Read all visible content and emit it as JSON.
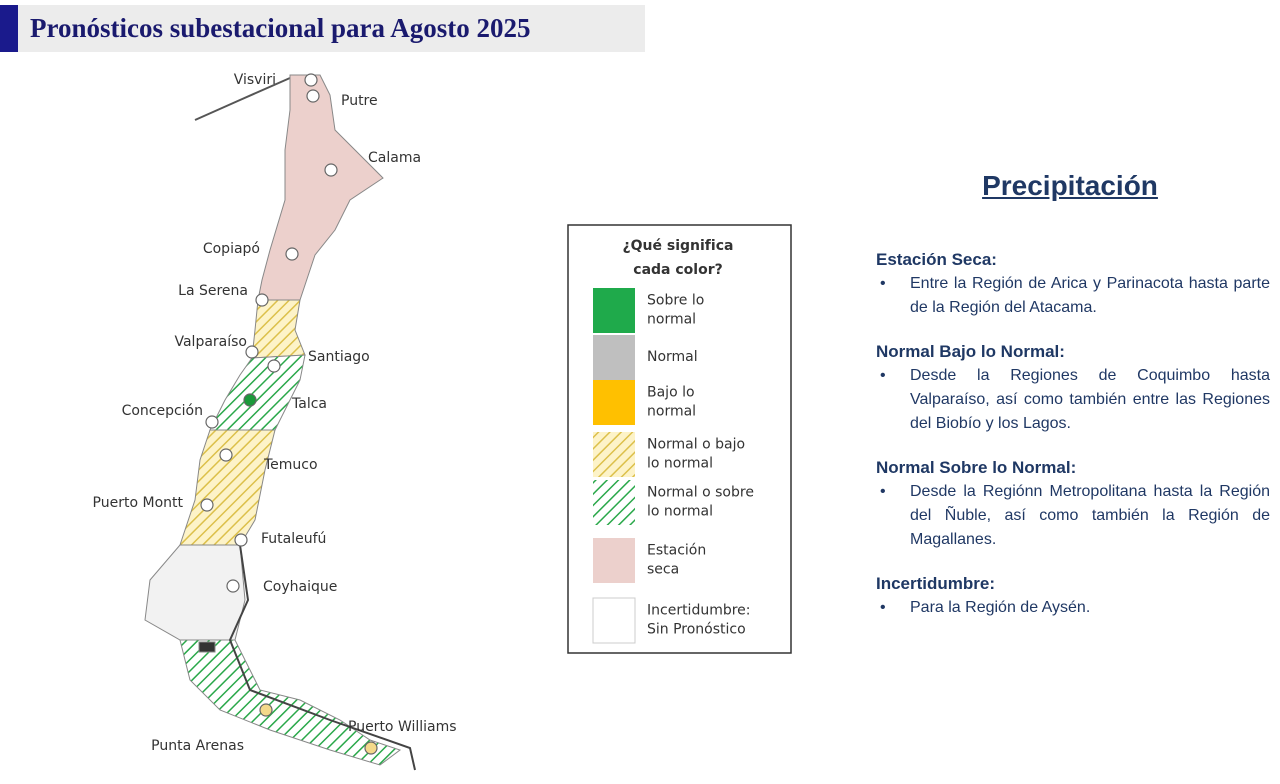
{
  "header": {
    "title": "Pronósticos subestacional para Agosto 2025"
  },
  "map": {
    "places": [
      {
        "label": "Visviri"
      },
      {
        "label": "Putre"
      },
      {
        "label": "Calama"
      },
      {
        "label": "Copiapó"
      },
      {
        "label": "La Serena"
      },
      {
        "label": "Valparaíso"
      },
      {
        "label": "Santiago"
      },
      {
        "label": "Talca"
      },
      {
        "label": "Concepción"
      },
      {
        "label": "Temuco"
      },
      {
        "label": "Puerto Montt"
      },
      {
        "label": "Futaleufú"
      },
      {
        "label": "Coyhaique"
      },
      {
        "label": "Punta Arenas"
      },
      {
        "label": "Puerto Williams"
      }
    ]
  },
  "legend": {
    "title_lines": [
      "¿Qué significa",
      "cada color?"
    ],
    "items": [
      {
        "lines": [
          "Sobre lo",
          "normal"
        ]
      },
      {
        "lines": [
          "Normal"
        ]
      },
      {
        "lines": [
          "Bajo lo",
          "normal"
        ]
      },
      {
        "lines": [
          "Normal o bajo",
          "lo normal"
        ]
      },
      {
        "lines": [
          "Normal o sobre",
          "lo normal"
        ]
      },
      {
        "lines": [
          "Estación",
          "seca"
        ]
      },
      {
        "lines": [
          "Incertidumbre:",
          "Sin Pronóstico"
        ]
      }
    ]
  },
  "text_panel": {
    "heading": "Precipitación",
    "sections": [
      {
        "heading": "Estación Seca:",
        "bullets": [
          "Entre la Región de Arica y Parinacota hasta parte de la Región del Atacama."
        ]
      },
      {
        "heading": "Normal Bajo lo Normal:",
        "bullets": [
          "Desde la Regiones de Coquimbo hasta Valparaíso, así como también entre las Regiones del Biobío y los Lagos."
        ]
      },
      {
        "heading": "Normal Sobre lo Normal:",
        "bullets": [
          "Desde la Regiónn Metropolitana hasta la Región del Ñuble, así como también la Región de Magallanes."
        ]
      },
      {
        "heading": "Incertidumbre:",
        "bullets": [
          "Para la Región de Aysén."
        ]
      }
    ]
  }
}
